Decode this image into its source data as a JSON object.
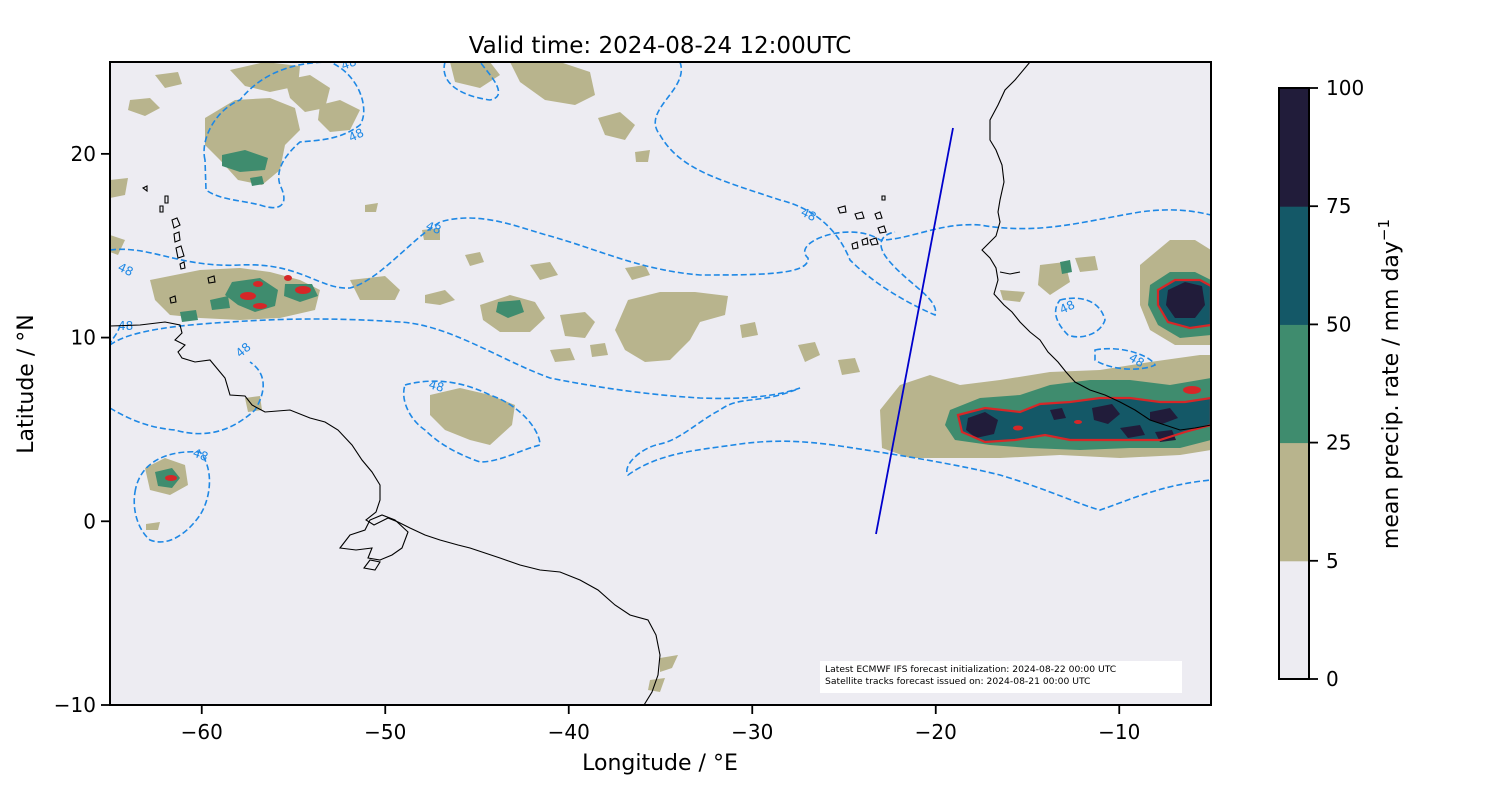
{
  "map": {
    "title": "Valid time: 2024-08-24 12:00UTC",
    "xlabel": "Longitude / °E",
    "ylabel": "Latitude / °N",
    "xlim": [
      -65,
      -5
    ],
    "ylim": [
      -10,
      25
    ],
    "xticks": [
      {
        "value": -60,
        "label": "−60"
      },
      {
        "value": -50,
        "label": "−50"
      },
      {
        "value": -40,
        "label": "−40"
      },
      {
        "value": -30,
        "label": "−30"
      },
      {
        "value": -20,
        "label": "−20"
      },
      {
        "value": -10,
        "label": "−10"
      }
    ],
    "yticks": [
      {
        "value": 20,
        "label": "20"
      },
      {
        "value": 10,
        "label": "10"
      },
      {
        "value": 0,
        "label": "0"
      },
      {
        "value": -10,
        "label": "−10"
      }
    ],
    "background_color": "#edecf2",
    "satellite_track": [
      [
        -23.2,
        -0.7
      ],
      [
        -19.1,
        21.4
      ]
    ],
    "satellite_track_color": "#0000cc",
    "contour_48_color": "#1e88e5",
    "contour_48_label": "48",
    "high_precip_outline_color": "#d62728",
    "precip_colors": {
      "5-25": "#b8b48d",
      "25-50": "#3f8c6e",
      "50-75": "#145867",
      "75-100": "#211c3a"
    },
    "annotation": {
      "line1": "Latest ECMWF IFS forecast initialization: 2024-08-22 00:00 UTC",
      "line2": "Satellite tracks forecast issued on: 2024-08-21 00:00 UTC"
    }
  },
  "colorbar": {
    "label": "mean precip. rate / mm day",
    "label_superscript": "−1",
    "levels": [
      {
        "value": 0,
        "label": "0",
        "color": "#edecf2"
      },
      {
        "value": 5,
        "label": "5",
        "color": "#b8b48d"
      },
      {
        "value": 25,
        "label": "25",
        "color": "#3f8c6e"
      },
      {
        "value": 50,
        "label": "50",
        "color": "#145867"
      },
      {
        "value": 75,
        "label": "75",
        "color": "#211c3a"
      },
      {
        "value": 100,
        "label": "100"
      }
    ]
  }
}
